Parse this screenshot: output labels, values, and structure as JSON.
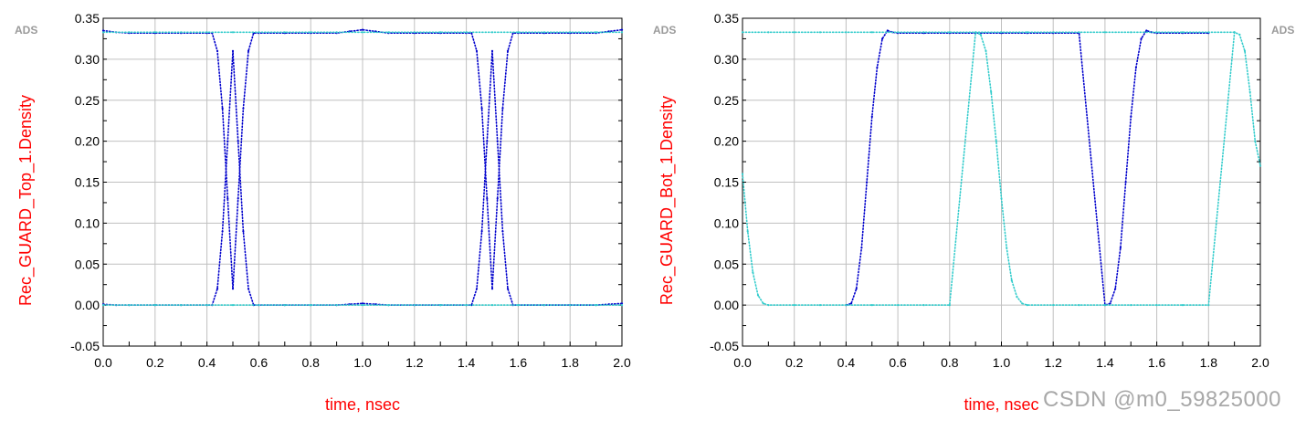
{
  "watermark": "CSDN @m0_59825000",
  "colors": {
    "grid": "#c0c0c0",
    "axis_label": "#ff0000",
    "ads": "#9a9a9a",
    "dark_series": "#0000cc",
    "light_series": "#33cccc"
  },
  "chart_data": [
    {
      "type": "scatter",
      "ads_label": "ADS",
      "ylabel": "Rec_GUARD_Top_1.Density",
      "xlabel": "time, nsec",
      "xlim": [
        0.0,
        2.0
      ],
      "ylim": [
        -0.05,
        0.35
      ],
      "xticks": [
        "0.0",
        "0.2",
        "0.4",
        "0.6",
        "0.8",
        "1.0",
        "1.2",
        "1.4",
        "1.6",
        "1.8",
        "2.0"
      ],
      "yticks": [
        "-0.05",
        "0.00",
        "0.05",
        "0.10",
        "0.15",
        "0.20",
        "0.25",
        "0.30",
        "0.35"
      ],
      "grid": true,
      "series": [
        {
          "color": "#0000cc",
          "x": [
            0.0,
            0.05,
            0.1,
            0.2,
            0.3,
            0.4,
            0.42,
            0.44,
            0.46,
            0.48,
            0.5,
            0.52,
            0.54,
            0.56,
            0.58,
            0.6,
            0.7,
            0.8,
            0.9,
            0.95,
            1.0,
            1.05,
            1.1,
            1.2,
            1.3,
            1.4,
            1.42,
            1.44,
            1.46,
            1.48,
            1.5,
            1.52,
            1.54,
            1.56,
            1.58,
            1.6,
            1.7,
            1.8,
            1.9,
            1.95,
            2.0
          ],
          "y": [
            0.335,
            0.333,
            0.332,
            0.332,
            0.332,
            0.332,
            0.332,
            0.31,
            0.24,
            0.13,
            0.02,
            0.13,
            0.24,
            0.31,
            0.332,
            0.332,
            0.332,
            0.332,
            0.332,
            0.334,
            0.336,
            0.334,
            0.332,
            0.332,
            0.332,
            0.332,
            0.332,
            0.31,
            0.24,
            0.13,
            0.02,
            0.13,
            0.24,
            0.31,
            0.332,
            0.332,
            0.332,
            0.332,
            0.332,
            0.334,
            0.336
          ]
        },
        {
          "color": "#0000cc",
          "x": [
            0.0,
            0.05,
            0.1,
            0.2,
            0.3,
            0.4,
            0.42,
            0.44,
            0.46,
            0.48,
            0.5,
            0.52,
            0.54,
            0.56,
            0.58,
            0.6,
            0.7,
            0.8,
            0.9,
            0.95,
            1.0,
            1.05,
            1.1,
            1.2,
            1.3,
            1.4,
            1.42,
            1.44,
            1.46,
            1.48,
            1.5,
            1.52,
            1.54,
            1.56,
            1.58,
            1.6,
            1.7,
            1.8,
            1.9,
            1.95,
            2.0
          ],
          "y": [
            0.001,
            0.0,
            0.0,
            0.0,
            0.0,
            0.0,
            0.0,
            0.02,
            0.09,
            0.2,
            0.31,
            0.2,
            0.09,
            0.02,
            0.0,
            0.0,
            0.0,
            0.0,
            0.0,
            0.001,
            0.002,
            0.001,
            0.0,
            0.0,
            0.0,
            0.0,
            0.0,
            0.02,
            0.09,
            0.2,
            0.31,
            0.2,
            0.09,
            0.02,
            0.0,
            0.0,
            0.0,
            0.0,
            0.0,
            0.001,
            0.002
          ]
        },
        {
          "color": "#33cccc",
          "x": [
            0.0,
            0.1,
            0.2,
            0.3,
            0.4,
            0.5,
            0.6,
            0.7,
            0.8,
            0.9,
            1.0,
            1.1,
            1.2,
            1.3,
            1.4,
            1.5,
            1.6,
            1.7,
            1.8,
            1.9,
            2.0
          ],
          "y": [
            0.333,
            0.333,
            0.333,
            0.333,
            0.333,
            0.333,
            0.333,
            0.333,
            0.333,
            0.333,
            0.333,
            0.333,
            0.333,
            0.333,
            0.333,
            0.333,
            0.333,
            0.333,
            0.333,
            0.333,
            0.333
          ]
        },
        {
          "color": "#33cccc",
          "x": [
            0.0,
            0.1,
            0.2,
            0.3,
            0.4,
            0.5,
            0.6,
            0.7,
            0.8,
            0.9,
            1.0,
            1.1,
            1.2,
            1.3,
            1.4,
            1.5,
            1.6,
            1.7,
            1.8,
            1.9,
            2.0
          ],
          "y": [
            0.0,
            0.0,
            0.0,
            0.0,
            0.0,
            0.0,
            0.0,
            0.0,
            0.0,
            0.0,
            0.0,
            0.0,
            0.0,
            0.0,
            0.0,
            0.0,
            0.0,
            0.0,
            0.0,
            0.0,
            0.0
          ]
        }
      ]
    },
    {
      "type": "scatter",
      "ads_label": "ADS",
      "ylabel": "Rec_GUARD_Bot_1.Density",
      "xlabel": "time, nsec",
      "xlim": [
        0.0,
        2.0
      ],
      "ylim": [
        -0.05,
        0.35
      ],
      "xticks": [
        "0.0",
        "0.2",
        "0.4",
        "0.6",
        "0.8",
        "1.0",
        "1.2",
        "1.4",
        "1.6",
        "1.8",
        "2.0"
      ],
      "yticks": [
        "-0.05",
        "0.00",
        "0.05",
        "0.10",
        "0.15",
        "0.20",
        "0.25",
        "0.30",
        "0.35"
      ],
      "grid": true,
      "series": [
        {
          "color": "#0000cc",
          "x": [
            0.4,
            0.42,
            0.44,
            0.46,
            0.48,
            0.5,
            0.52,
            0.54,
            0.56,
            0.58,
            0.6,
            0.7,
            0.8,
            0.9,
            1.0,
            1.1,
            1.2,
            1.3,
            1.4,
            1.42,
            1.44,
            1.46,
            1.48,
            1.5,
            1.52,
            1.54,
            1.56,
            1.58,
            1.6,
            1.7,
            1.8
          ],
          "y": [
            0.0,
            0.002,
            0.02,
            0.07,
            0.15,
            0.23,
            0.29,
            0.325,
            0.335,
            0.333,
            0.332,
            0.332,
            0.332,
            0.332,
            0.332,
            0.332,
            0.332,
            0.332,
            0.0,
            0.002,
            0.02,
            0.07,
            0.15,
            0.23,
            0.29,
            0.325,
            0.335,
            0.333,
            0.332,
            0.332,
            0.332
          ]
        },
        {
          "color": "#33cccc",
          "x": [
            0.0,
            0.02,
            0.04,
            0.06,
            0.08,
            0.1,
            0.2,
            0.3,
            0.4,
            0.5,
            0.6,
            0.7,
            0.8,
            0.9,
            0.92,
            0.94,
            0.96,
            0.98,
            1.0,
            1.02,
            1.04,
            1.06,
            1.08,
            1.1,
            1.2,
            1.3,
            1.4,
            1.5,
            1.6,
            1.7,
            1.8,
            1.9,
            1.92,
            1.94,
            1.96,
            1.98,
            2.0
          ],
          "y": [
            0.16,
            0.09,
            0.04,
            0.012,
            0.002,
            0.0,
            0.0,
            0.0,
            0.0,
            0.0,
            0.0,
            0.0,
            0.0,
            0.333,
            0.33,
            0.31,
            0.26,
            0.2,
            0.13,
            0.07,
            0.03,
            0.01,
            0.002,
            0.0,
            0.0,
            0.0,
            0.0,
            0.0,
            0.0,
            0.0,
            0.0,
            0.333,
            0.33,
            0.31,
            0.26,
            0.2,
            0.17
          ]
        },
        {
          "color": "#33cccc",
          "x": [
            0.0,
            0.1,
            0.2,
            0.3,
            0.4,
            0.5,
            0.6,
            0.7,
            0.8,
            0.9,
            1.0,
            1.1,
            1.2,
            1.3,
            1.4,
            1.5,
            1.6,
            1.7,
            1.8,
            1.9
          ],
          "y": [
            0.333,
            0.333,
            0.333,
            0.333,
            0.333,
            0.333,
            0.333,
            0.333,
            0.333,
            0.333,
            0.333,
            0.333,
            0.333,
            0.333,
            0.333,
            0.333,
            0.333,
            0.333,
            0.333,
            0.333
          ]
        }
      ]
    }
  ]
}
